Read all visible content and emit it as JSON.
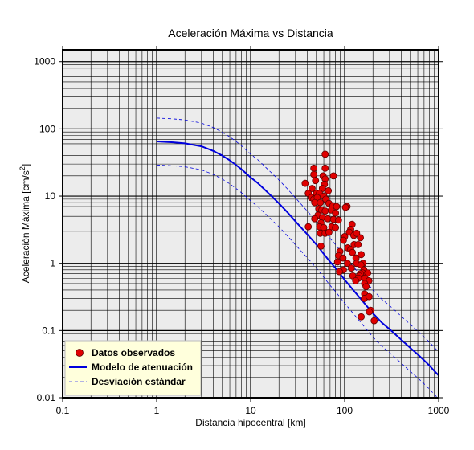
{
  "chart_data": {
    "type": "scatter",
    "title": "Aceleración Máxima vs Distancia",
    "xlabel": "Distancia hipocentral [km]",
    "ylabel_main": "Aceleración Máxima [cm/s",
    "ylabel_sup": "2",
    "ylabel_end": "]",
    "xscale": "log",
    "yscale": "log",
    "xlim": [
      0.1,
      1000
    ],
    "ylim": [
      0.01,
      1500
    ],
    "grid": true,
    "legend_position": "bottom-left",
    "x_ticks": [
      {
        "value": 0.1,
        "label": "0.1"
      },
      {
        "value": 1,
        "label": "1"
      },
      {
        "value": 10,
        "label": "10"
      },
      {
        "value": 100,
        "label": "100"
      },
      {
        "value": 1000,
        "label": "1000"
      }
    ],
    "y_ticks": [
      {
        "value": 0.01,
        "label": "0.01"
      },
      {
        "value": 0.1,
        "label": "0.1"
      },
      {
        "value": 1,
        "label": "1"
      },
      {
        "value": 10,
        "label": "10"
      },
      {
        "value": 100,
        "label": "100"
      },
      {
        "value": 1000,
        "label": "1000"
      }
    ],
    "legend": [
      {
        "label": "Datos observados",
        "kind": "marker"
      },
      {
        "label": "Modelo de atenuación",
        "kind": "line"
      },
      {
        "label": "Desviación estándar",
        "kind": "dashed"
      }
    ],
    "series": [
      {
        "name": "Datos observados",
        "kind": "scatter",
        "color": "#e00000",
        "points": [
          [
            62,
            42
          ],
          [
            47,
            26
          ],
          [
            62,
            26
          ],
          [
            76,
            20
          ],
          [
            47,
            21
          ],
          [
            59,
            20
          ],
          [
            62,
            18
          ],
          [
            38,
            15.5
          ],
          [
            49,
            17
          ],
          [
            61,
            15
          ],
          [
            45,
            13
          ],
          [
            58,
            13
          ],
          [
            67,
            12
          ],
          [
            41,
            11
          ],
          [
            50,
            11
          ],
          [
            54,
            11
          ],
          [
            60,
            10
          ],
          [
            44,
            9.5
          ],
          [
            47,
            9
          ],
          [
            51,
            9.5
          ],
          [
            63,
            9
          ],
          [
            48,
            8
          ],
          [
            55,
            8
          ],
          [
            68,
            7.8
          ],
          [
            75,
            7.2
          ],
          [
            82,
            7
          ],
          [
            106,
            7
          ],
          [
            102,
            6.8
          ],
          [
            53,
            6.5
          ],
          [
            57,
            6.2
          ],
          [
            62,
            6
          ],
          [
            72,
            6.2
          ],
          [
            80,
            5.6
          ],
          [
            52,
            5.2
          ],
          [
            48,
            4.6
          ],
          [
            58,
            4.8
          ],
          [
            66,
            4.6
          ],
          [
            76,
            4.5
          ],
          [
            86,
            4.4
          ],
          [
            56,
            4
          ],
          [
            41,
            3.5
          ],
          [
            54,
            3.5
          ],
          [
            60,
            3.4
          ],
          [
            73,
            3.5
          ],
          [
            80,
            3.4
          ],
          [
            120,
            3.8
          ],
          [
            116,
            3.2
          ],
          [
            55,
            2.8
          ],
          [
            62,
            2.8
          ],
          [
            68,
            2.9
          ],
          [
            112,
            2.9
          ],
          [
            100,
            2.5
          ],
          [
            97,
            2.2
          ],
          [
            125,
            2.6
          ],
          [
            134,
            2.8
          ],
          [
            147,
            2.4
          ],
          [
            56,
            1.8
          ],
          [
            108,
            1.7
          ],
          [
            116,
            1.6
          ],
          [
            126,
            1.9
          ],
          [
            139,
            1.9
          ],
          [
            89,
            1.5
          ],
          [
            121,
            1.45
          ],
          [
            86,
            1.3
          ],
          [
            96,
            1.2
          ],
          [
            132,
            1.2
          ],
          [
            150,
            1.35
          ],
          [
            84,
            1.05
          ],
          [
            107,
            1.0
          ],
          [
            134,
            1.0
          ],
          [
            157,
            1.0
          ],
          [
            149,
            0.95
          ],
          [
            118,
            0.85
          ],
          [
            97,
            0.8
          ],
          [
            88,
            0.75
          ],
          [
            160,
            0.8
          ],
          [
            155,
            0.72
          ],
          [
            147,
            0.7
          ],
          [
            122,
            0.65
          ],
          [
            143,
            0.65
          ],
          [
            176,
            0.72
          ],
          [
            140,
            0.6
          ],
          [
            165,
            0.6
          ],
          [
            131,
            0.55
          ],
          [
            181,
            0.55
          ],
          [
            163,
            0.5
          ],
          [
            169,
            0.45
          ],
          [
            163,
            0.35
          ],
          [
            162,
            0.3
          ],
          [
            182,
            0.32
          ],
          [
            189,
            0.2
          ],
          [
            183,
            0.19
          ],
          [
            150,
            0.16
          ],
          [
            206,
            0.14
          ]
        ]
      },
      {
        "name": "Modelo de atenuación",
        "kind": "line",
        "color": "#0000dd",
        "points": [
          [
            1,
            65
          ],
          [
            1.5,
            63
          ],
          [
            2,
            61
          ],
          [
            3,
            55
          ],
          [
            4,
            47
          ],
          [
            5,
            40
          ],
          [
            6,
            34
          ],
          [
            7,
            29
          ],
          [
            8,
            25
          ],
          [
            10,
            19
          ],
          [
            12,
            15.5
          ],
          [
            15,
            11.5
          ],
          [
            20,
            7.8
          ],
          [
            25,
            5.6
          ],
          [
            30,
            4.2
          ],
          [
            40,
            2.7
          ],
          [
            50,
            1.9
          ],
          [
            60,
            1.38
          ],
          [
            70,
            1.05
          ],
          [
            80,
            0.85
          ],
          [
            100,
            0.57
          ],
          [
            120,
            0.42
          ],
          [
            150,
            0.29
          ],
          [
            200,
            0.18
          ],
          [
            250,
            0.13
          ],
          [
            300,
            0.105
          ],
          [
            400,
            0.073
          ],
          [
            500,
            0.055
          ],
          [
            600,
            0.044
          ],
          [
            700,
            0.036
          ],
          [
            800,
            0.03
          ],
          [
            900,
            0.025
          ],
          [
            1000,
            0.0215
          ]
        ]
      },
      {
        "name": "Desviación estándar (superior)",
        "kind": "dashed",
        "color": "#0000dd",
        "points": [
          [
            1,
            145
          ],
          [
            1.5,
            141
          ],
          [
            2,
            136
          ],
          [
            3,
            122
          ],
          [
            4,
            105
          ],
          [
            5,
            89
          ],
          [
            6,
            76
          ],
          [
            7,
            65
          ],
          [
            8,
            56
          ],
          [
            10,
            42
          ],
          [
            12,
            34.5
          ],
          [
            15,
            25.5
          ],
          [
            20,
            17.4
          ],
          [
            25,
            12.5
          ],
          [
            30,
            9.4
          ],
          [
            40,
            6.0
          ],
          [
            50,
            4.25
          ],
          [
            60,
            3.1
          ],
          [
            70,
            2.35
          ],
          [
            80,
            1.9
          ],
          [
            100,
            1.27
          ],
          [
            120,
            0.94
          ],
          [
            150,
            0.65
          ],
          [
            200,
            0.4
          ],
          [
            250,
            0.29
          ],
          [
            300,
            0.235
          ],
          [
            400,
            0.163
          ],
          [
            500,
            0.123
          ],
          [
            600,
            0.098
          ],
          [
            700,
            0.08
          ],
          [
            800,
            0.067
          ],
          [
            900,
            0.056
          ],
          [
            1000,
            0.048
          ]
        ]
      },
      {
        "name": "Desviación estándar (inferior)",
        "kind": "dashed",
        "color": "#0000dd",
        "points": [
          [
            1,
            29
          ],
          [
            1.5,
            28.2
          ],
          [
            2,
            27.3
          ],
          [
            3,
            24.6
          ],
          [
            4,
            21
          ],
          [
            5,
            17.9
          ],
          [
            6,
            15.2
          ],
          [
            7,
            13
          ],
          [
            8,
            11.2
          ],
          [
            10,
            8.5
          ],
          [
            12,
            6.9
          ],
          [
            15,
            5.15
          ],
          [
            20,
            3.5
          ],
          [
            25,
            2.5
          ],
          [
            30,
            1.88
          ],
          [
            40,
            1.21
          ],
          [
            50,
            0.85
          ],
          [
            60,
            0.62
          ],
          [
            70,
            0.47
          ],
          [
            80,
            0.38
          ],
          [
            100,
            0.255
          ],
          [
            120,
            0.188
          ],
          [
            150,
            0.13
          ],
          [
            200,
            0.08
          ],
          [
            250,
            0.058
          ],
          [
            300,
            0.047
          ],
          [
            400,
            0.0327
          ],
          [
            500,
            0.0246
          ],
          [
            600,
            0.0197
          ],
          [
            700,
            0.0161
          ],
          [
            800,
            0.0134
          ],
          [
            900,
            0.0112
          ],
          [
            1000,
            0.0096
          ]
        ]
      }
    ]
  }
}
